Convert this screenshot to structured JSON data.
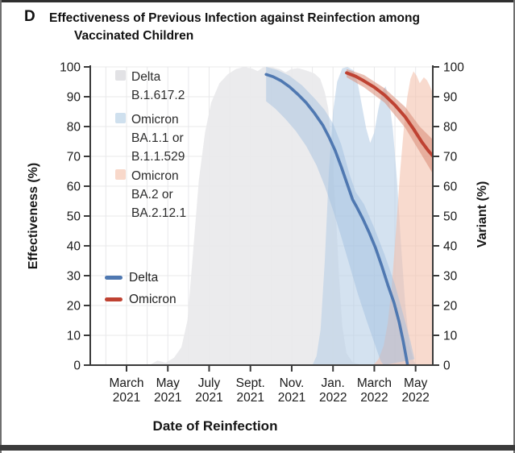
{
  "panel": {
    "letter": "D",
    "title_line1": "Effectiveness of Previous Infection against Reinfection among",
    "title_line2": "Vaccinated Children"
  },
  "legend": {
    "areas": [
      {
        "key": "delta-prevalence",
        "color": "#e2e2e5",
        "lines": [
          "Delta",
          "B.1.617.2"
        ]
      },
      {
        "key": "omicron-ba1-prevalence",
        "color": "#cfe0ee",
        "lines": [
          "Omicron",
          "BA.1.1 or",
          "B.1.1.529"
        ]
      },
      {
        "key": "omicron-ba2-prevalence",
        "color": "#f8d8ca",
        "lines": [
          "Omicron",
          "BA.2 or",
          "BA.2.12.1"
        ]
      }
    ],
    "lines": [
      {
        "key": "delta-effectiveness",
        "label": "Delta",
        "color": "#4f78b1"
      },
      {
        "key": "omicron-effectiveness",
        "label": "Omicron",
        "color": "#bf4232"
      }
    ]
  },
  "chart_data": {
    "type": "line",
    "title": "Effectiveness of Previous Infection against Reinfection among Vaccinated Children",
    "xlabel": "Date of Reinfection",
    "ylabel_left": "Effectiveness (%)",
    "ylabel_right": "Variant (%)",
    "ylim": [
      0,
      100
    ],
    "grid": true,
    "x_unit": "months_since_2021-03-01",
    "y_ticks": [
      0,
      10,
      20,
      30,
      40,
      50,
      60,
      70,
      80,
      90,
      100
    ],
    "x_ticks": [
      {
        "m": 0,
        "month": "March",
        "year": "2021"
      },
      {
        "m": 2,
        "month": "May",
        "year": "2021"
      },
      {
        "m": 4,
        "month": "July",
        "year": "2021"
      },
      {
        "m": 6,
        "month": "Sept.",
        "year": "2021"
      },
      {
        "m": 8,
        "month": "Nov.",
        "year": "2021"
      },
      {
        "m": 10,
        "month": "Jan.",
        "year": "2022"
      },
      {
        "m": 12,
        "month": "March",
        "year": "2022"
      },
      {
        "m": 14,
        "month": "May",
        "year": "2022"
      }
    ],
    "variant_areas": [
      {
        "key": "delta-b16172-prevalence",
        "color": "#e9e9eb",
        "opacity": 0.92,
        "points": [
          [
            1.1,
            0
          ],
          [
            1.5,
            1.5
          ],
          [
            1.9,
            0.8
          ],
          [
            2.3,
            2.5
          ],
          [
            2.66,
            6
          ],
          [
            2.95,
            15
          ],
          [
            3.2,
            36
          ],
          [
            3.5,
            62
          ],
          [
            3.8,
            78
          ],
          [
            4.1,
            88
          ],
          [
            4.5,
            94.5
          ],
          [
            4.9,
            97.5
          ],
          [
            5.3,
            99.3
          ],
          [
            5.7,
            100
          ],
          [
            6.1,
            99.4
          ],
          [
            6.35,
            98.6
          ],
          [
            6.6,
            99.8
          ],
          [
            7.0,
            100
          ],
          [
            7.4,
            99.3
          ],
          [
            7.7,
            98.2
          ],
          [
            7.95,
            99.2
          ],
          [
            8.3,
            99.6
          ],
          [
            8.7,
            98.8
          ],
          [
            9.1,
            97.8
          ],
          [
            9.38,
            96
          ],
          [
            9.6,
            91.5
          ],
          [
            9.77,
            86
          ],
          [
            10.0,
            66
          ],
          [
            10.16,
            48
          ],
          [
            10.3,
            29
          ],
          [
            10.45,
            13
          ],
          [
            10.65,
            4
          ],
          [
            10.95,
            1
          ],
          [
            11.4,
            0
          ]
        ]
      },
      {
        "key": "omicron-ba11-b11529-prevalence",
        "color": "#b7cfe6",
        "opacity": 0.6,
        "points": [
          [
            9.0,
            0
          ],
          [
            9.2,
            3
          ],
          [
            9.4,
            12
          ],
          [
            9.6,
            35
          ],
          [
            9.8,
            65
          ],
          [
            10.0,
            85
          ],
          [
            10.2,
            95
          ],
          [
            10.45,
            99.5
          ],
          [
            10.7,
            100
          ],
          [
            11.0,
            98.8
          ],
          [
            11.2,
            94.5
          ],
          [
            11.4,
            87
          ],
          [
            11.6,
            79.5
          ],
          [
            11.8,
            74.5
          ],
          [
            12.0,
            78
          ],
          [
            12.2,
            86
          ],
          [
            12.4,
            92
          ],
          [
            12.55,
            93.5
          ],
          [
            12.7,
            89.5
          ],
          [
            12.9,
            79
          ],
          [
            13.1,
            62
          ],
          [
            13.3,
            40
          ],
          [
            13.5,
            20
          ],
          [
            13.7,
            7
          ],
          [
            13.9,
            1.5
          ],
          [
            14.05,
            0
          ]
        ]
      },
      {
        "key": "omicron-ba2-ba2121-prevalence",
        "color": "#f4c2ad",
        "opacity": 0.6,
        "points": [
          [
            11.95,
            0
          ],
          [
            12.2,
            2
          ],
          [
            12.45,
            6.5
          ],
          [
            12.65,
            14
          ],
          [
            12.85,
            27
          ],
          [
            13.05,
            45
          ],
          [
            13.25,
            65
          ],
          [
            13.45,
            81
          ],
          [
            13.6,
            90
          ],
          [
            13.75,
            96
          ],
          [
            13.9,
            98.5
          ],
          [
            14.05,
            97
          ],
          [
            14.2,
            94.5
          ],
          [
            14.4,
            96.5
          ],
          [
            14.55,
            95.5
          ],
          [
            14.7,
            93.5
          ],
          [
            14.85,
            91
          ]
        ]
      }
    ],
    "series": [
      {
        "name": "Delta",
        "color": "#4f78b1",
        "width": 3.6,
        "band_color": "#9dbcdd",
        "band_opacity": 0.45,
        "points": [
          [
            6.76,
            97.5
          ],
          [
            7.1,
            96.7
          ],
          [
            7.5,
            95.3
          ],
          [
            7.9,
            93.3
          ],
          [
            8.3,
            90.8
          ],
          [
            8.7,
            88
          ],
          [
            9.1,
            84.5
          ],
          [
            9.5,
            80.5
          ],
          [
            9.8,
            76.5
          ],
          [
            10.1,
            72
          ],
          [
            10.4,
            66.5
          ],
          [
            10.7,
            60.5
          ],
          [
            10.95,
            55.5
          ],
          [
            11.15,
            53
          ],
          [
            11.45,
            49
          ],
          [
            11.75,
            44.5
          ],
          [
            12.05,
            39.5
          ],
          [
            12.35,
            33.5
          ],
          [
            12.65,
            27
          ],
          [
            12.95,
            21
          ],
          [
            13.2,
            14.5
          ],
          [
            13.4,
            8
          ],
          [
            13.6,
            0.5
          ]
        ],
        "band_upper": [
          [
            6.76,
            100
          ],
          [
            7.3,
            99
          ],
          [
            7.9,
            97
          ],
          [
            8.5,
            93.8
          ],
          [
            9.1,
            89.5
          ],
          [
            9.6,
            85.5
          ],
          [
            10.0,
            81
          ],
          [
            10.4,
            74
          ],
          [
            10.8,
            64
          ],
          [
            11.1,
            58
          ],
          [
            11.5,
            54
          ],
          [
            12.0,
            46
          ],
          [
            12.5,
            37
          ],
          [
            13.0,
            27
          ],
          [
            13.4,
            17
          ],
          [
            13.75,
            8
          ],
          [
            13.95,
            2
          ]
        ],
        "band_lower": [
          [
            6.76,
            88.5
          ],
          [
            7.2,
            86
          ],
          [
            7.7,
            82.5
          ],
          [
            8.2,
            78.5
          ],
          [
            8.7,
            73.5
          ],
          [
            9.2,
            67
          ],
          [
            9.6,
            60
          ],
          [
            10.0,
            52
          ],
          [
            10.4,
            43
          ],
          [
            10.8,
            33.5
          ],
          [
            11.2,
            24
          ],
          [
            11.6,
            15.5
          ],
          [
            12.0,
            7.5
          ],
          [
            12.3,
            1.5
          ],
          [
            12.45,
            0
          ]
        ]
      },
      {
        "name": "Omicron",
        "color": "#bf4232",
        "width": 4,
        "band_color": "#d88a75",
        "band_opacity": 0.55,
        "points": [
          [
            10.66,
            98
          ],
          [
            11.1,
            96.8
          ],
          [
            11.5,
            95.3
          ],
          [
            12.0,
            93.2
          ],
          [
            12.5,
            90.5
          ],
          [
            13.0,
            87.2
          ],
          [
            13.5,
            83.2
          ],
          [
            13.9,
            79.2
          ],
          [
            14.3,
            74.8
          ],
          [
            14.6,
            72
          ],
          [
            14.85,
            70
          ]
        ],
        "band_upper": [
          [
            10.66,
            99.3
          ],
          [
            11.5,
            97.3
          ],
          [
            12.5,
            92.8
          ],
          [
            13.5,
            86.5
          ],
          [
            14.2,
            80
          ],
          [
            14.85,
            75.5
          ]
        ],
        "band_lower": [
          [
            10.66,
            96.5
          ],
          [
            11.5,
            93.2
          ],
          [
            12.5,
            88
          ],
          [
            13.5,
            79.5
          ],
          [
            14.2,
            71.5
          ],
          [
            14.85,
            64
          ]
        ]
      }
    ]
  }
}
